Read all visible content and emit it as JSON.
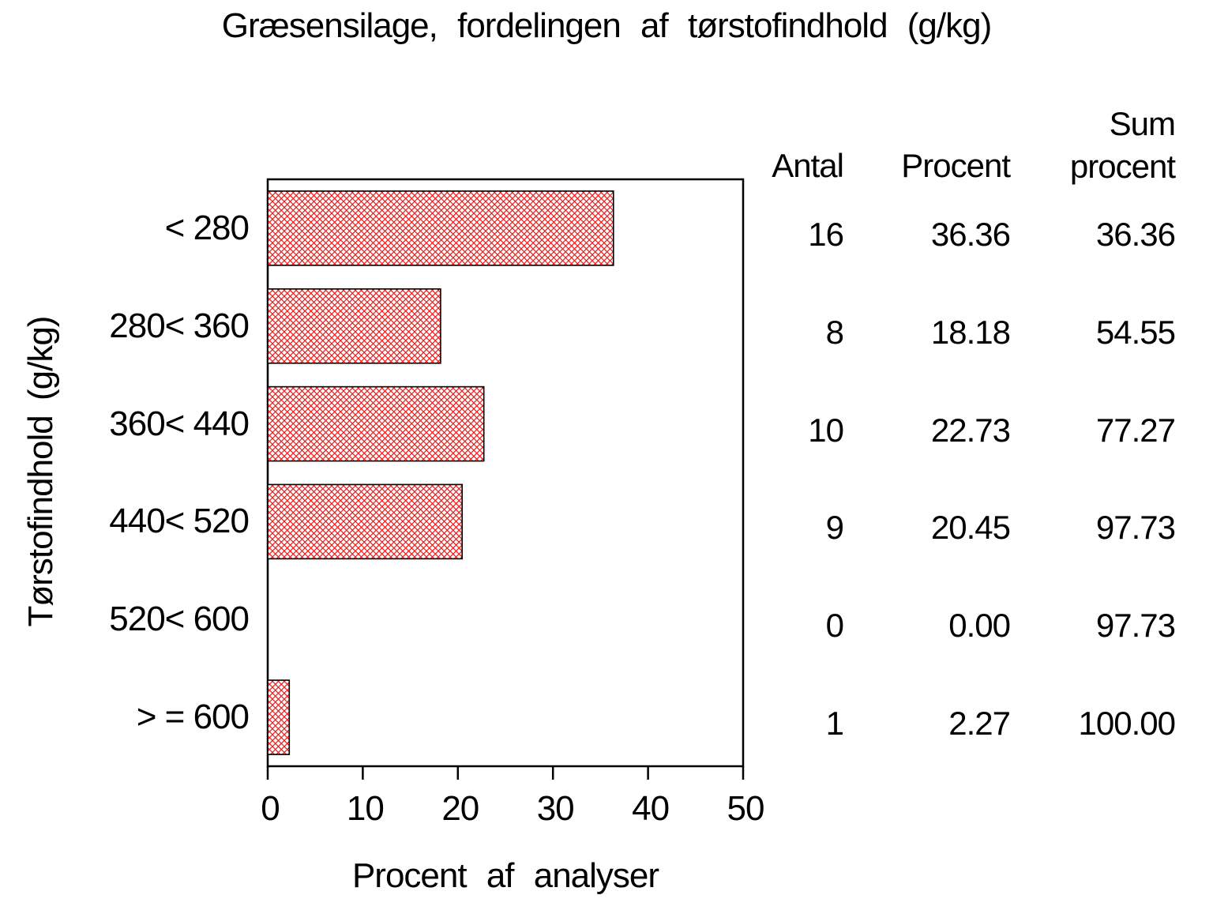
{
  "title": "Græsensilage, fordelingen af tørstofindhold (g/kg)",
  "colors": {
    "hatch": "#ee1c1c",
    "axis": "#000000",
    "background": "#ffffff"
  },
  "chart_data": {
    "type": "bar",
    "orientation": "horizontal",
    "title": "Græsensilage, fordelingen af tørstofindhold (g/kg)",
    "categories": [
      "< 280",
      "280< 360",
      "360< 440",
      "440< 520",
      "520< 600",
      "> = 600"
    ],
    "values": [
      36.36,
      18.18,
      22.73,
      20.45,
      0.0,
      2.27
    ],
    "counts": [
      16,
      8,
      10,
      9,
      0,
      1
    ],
    "cumulative_percent": [
      36.36,
      54.55,
      77.27,
      97.73,
      97.73,
      100.0
    ],
    "xlabel": "Procent af analyser",
    "ylabel": "Tørstofindhold (g/kg)",
    "xlim": [
      0,
      50
    ],
    "xticks": [
      "0",
      "10",
      "20",
      "30",
      "40",
      "50"
    ],
    "grid": "off",
    "bar_fill": "red crosshatch pattern",
    "legend": "none"
  },
  "table": {
    "header_antal": "Antal",
    "header_procent": "Procent",
    "header_sum_top": "Sum",
    "header_sum_bottom": "procent",
    "rows": [
      {
        "antal": "16",
        "procent": "36.36",
        "sum_procent": "36.36"
      },
      {
        "antal": "8",
        "procent": "18.18",
        "sum_procent": "54.55"
      },
      {
        "antal": "10",
        "procent": "22.73",
        "sum_procent": "77.27"
      },
      {
        "antal": "9",
        "procent": "20.45",
        "sum_procent": "97.73"
      },
      {
        "antal": "0",
        "procent": "0.00",
        "sum_procent": "97.73"
      },
      {
        "antal": "1",
        "procent": "2.27",
        "sum_procent": "100.00"
      }
    ]
  }
}
